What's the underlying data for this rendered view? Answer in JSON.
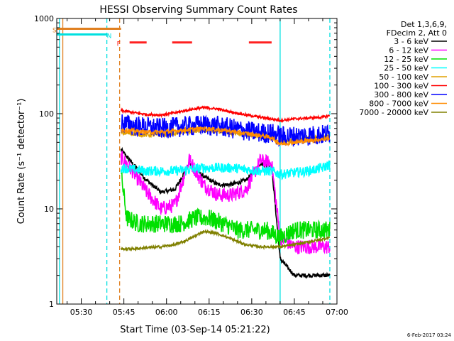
{
  "chart_data": {
    "type": "line",
    "title": "HESSI Observing Summary Count Rates",
    "xlabel": "Start Time (03-Sep-14 05:21:22)",
    "ylabel": "Count Rate (s⁻¹ detector⁻¹)",
    "y_scale": "log",
    "ylim": [
      1,
      1000
    ],
    "xlim": [
      "05:21:22",
      "07:00:00"
    ],
    "x_ticks": [
      "05:30",
      "05:45",
      "06:00",
      "06:15",
      "06:30",
      "06:45",
      "07:00"
    ],
    "y_ticks": [
      "1",
      "10",
      "100",
      "1000"
    ],
    "legend_position": "right",
    "legend_header": [
      "Det 1,3,6,9,",
      "FDecim 2, Att 0"
    ],
    "timestamp": "6-Feb-2017 03:24",
    "flags": [
      {
        "label": "S",
        "color": "#e08020",
        "level": 780,
        "from": "05:21:22",
        "to": "05:44:00"
      },
      {
        "label": "N",
        "color": "#00e0e0",
        "level": 680,
        "from": "05:21:22",
        "to": "05:39:00"
      },
      {
        "label": "F",
        "color": "#ff2020",
        "level": 560,
        "segments": [
          [
            "05:47",
            "05:53"
          ],
          [
            "06:02",
            "06:09"
          ],
          [
            "06:29",
            "06:37"
          ]
        ]
      }
    ],
    "marker_lines": [
      {
        "time": "05:23:30",
        "color": "#e08020",
        "style": "solid"
      },
      {
        "time": "05:22:20",
        "color": "#00e0e0",
        "style": "solid"
      },
      {
        "time": "05:39:00",
        "color": "#00e0e0",
        "style": "dashed"
      },
      {
        "time": "05:43:30",
        "color": "#e08020",
        "style": "dashed"
      },
      {
        "time": "06:40:00",
        "color": "#00e0e0",
        "style": "solid"
      },
      {
        "time": "06:57:30",
        "color": "#00e0e0",
        "style": "dashed"
      }
    ],
    "data_range": [
      "05:44:00",
      "06:57:30"
    ],
    "series": [
      {
        "name": "3 - 6 keV",
        "color": "#000000",
        "x": [
          "05:44",
          "05:48",
          "05:53",
          "05:58",
          "06:03",
          "06:08",
          "06:13",
          "06:18",
          "06:23",
          "06:28",
          "06:33",
          "06:37",
          "06:40",
          "06:45",
          "06:50",
          "06:55",
          "06:57"
        ],
        "values": [
          42,
          30,
          20,
          15,
          16,
          30,
          22,
          18,
          18,
          20,
          30,
          28,
          3,
          2,
          2,
          2,
          2
        ]
      },
      {
        "name": "6 - 12 keV",
        "color": "#ff00ff",
        "x": [
          "05:44",
          "05:48",
          "05:53",
          "05:58",
          "06:03",
          "06:08",
          "06:13",
          "06:18",
          "06:23",
          "06:28",
          "06:33",
          "06:37",
          "06:40",
          "06:45",
          "06:50",
          "06:55",
          "06:57"
        ],
        "values": [
          35,
          25,
          15,
          10,
          11,
          33,
          18,
          14,
          14,
          16,
          32,
          30,
          5,
          4,
          4,
          4,
          4
        ]
      },
      {
        "name": "12 - 25 keV",
        "color": "#00e000",
        "x": [
          "05:44",
          "05:46",
          "05:50",
          "05:55",
          "06:00",
          "06:05",
          "06:10",
          "06:15",
          "06:20",
          "06:25",
          "06:30",
          "06:35",
          "06:40",
          "06:45",
          "06:50",
          "06:55",
          "06:57"
        ],
        "values": [
          24,
          8,
          7,
          7,
          7,
          7,
          8,
          8,
          7,
          6,
          6,
          6,
          5,
          6,
          6,
          6,
          6
        ]
      },
      {
        "name": "25 - 50 keV",
        "color": "#00ffff",
        "x": [
          "05:44",
          "05:48",
          "05:53",
          "05:58",
          "06:03",
          "06:08",
          "06:13",
          "06:18",
          "06:23",
          "06:28",
          "06:33",
          "06:37",
          "06:40",
          "06:45",
          "06:50",
          "06:55",
          "06:57"
        ],
        "values": [
          27,
          26,
          25,
          25,
          25,
          26,
          27,
          27,
          27,
          26,
          25,
          25,
          23,
          24,
          25,
          27,
          29
        ]
      },
      {
        "name": "50 - 100 keV",
        "color": "#e0a000",
        "x": [
          "05:44",
          "05:48",
          "05:53",
          "05:58",
          "06:03",
          "06:08",
          "06:13",
          "06:18",
          "06:23",
          "06:28",
          "06:33",
          "06:37",
          "06:40",
          "06:45",
          "06:50",
          "06:55",
          "06:57"
        ],
        "values": [
          63,
          62,
          60,
          60,
          62,
          65,
          67,
          66,
          63,
          60,
          58,
          57,
          50,
          52,
          54,
          56,
          57
        ]
      },
      {
        "name": "100 - 300 keV",
        "color": "#ff0000",
        "x": [
          "05:44",
          "05:48",
          "05:53",
          "05:58",
          "06:03",
          "06:08",
          "06:13",
          "06:18",
          "06:23",
          "06:28",
          "06:33",
          "06:37",
          "06:40",
          "06:45",
          "06:50",
          "06:55",
          "06:57"
        ],
        "values": [
          108,
          103,
          98,
          97,
          102,
          110,
          116,
          112,
          104,
          97,
          92,
          88,
          85,
          88,
          90,
          92,
          95
        ]
      },
      {
        "name": "300 - 800 keV",
        "color": "#0000ff",
        "x": [
          "05:44",
          "05:48",
          "05:53",
          "05:58",
          "06:03",
          "06:08",
          "06:13",
          "06:18",
          "06:23",
          "06:28",
          "06:33",
          "06:37",
          "06:40",
          "06:45",
          "06:50",
          "06:55",
          "06:57"
        ],
        "values": [
          80,
          75,
          72,
          70,
          72,
          74,
          76,
          74,
          70,
          66,
          63,
          62,
          58,
          58,
          59,
          60,
          61
        ]
      },
      {
        "name": "800 - 7000 keV",
        "color": "#ff8c00",
        "x": [
          "05:44",
          "05:48",
          "05:53",
          "05:58",
          "06:03",
          "06:08",
          "06:13",
          "06:18",
          "06:23",
          "06:28",
          "06:33",
          "06:37",
          "06:40",
          "06:45",
          "06:50",
          "06:55",
          "06:57"
        ],
        "values": [
          68,
          66,
          64,
          64,
          66,
          68,
          70,
          68,
          65,
          62,
          59,
          56,
          48,
          50,
          52,
          54,
          55
        ]
      },
      {
        "name": "7000 - 20000 keV",
        "color": "#808000",
        "x": [
          "05:44",
          "05:48",
          "05:53",
          "05:58",
          "06:03",
          "06:08",
          "06:13",
          "06:18",
          "06:23",
          "06:28",
          "06:33",
          "06:37",
          "06:40",
          "06:45",
          "06:50",
          "06:55",
          "06:57"
        ],
        "values": [
          3.8,
          3.8,
          3.9,
          4.0,
          4.2,
          4.8,
          5.8,
          5.5,
          4.8,
          4.2,
          4.0,
          4.0,
          4.0,
          4.2,
          4.5,
          4.8,
          5.0
        ]
      }
    ]
  }
}
